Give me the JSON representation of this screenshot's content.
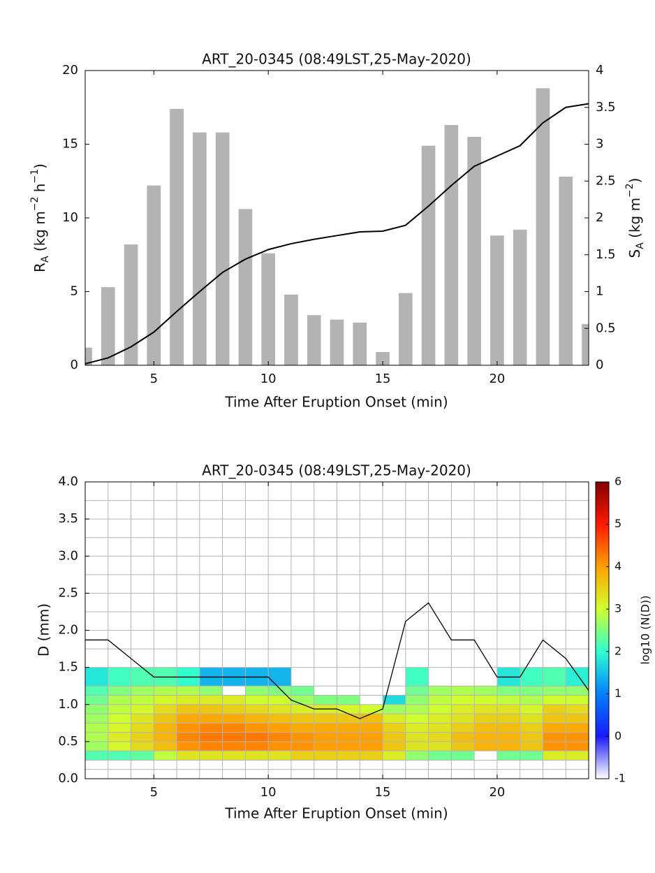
{
  "chart_data": [
    {
      "type": "bar",
      "title": "ART_20-0345 (08:49LST,25-May-2020)",
      "xlabel": "Time After Eruption Onset (min)",
      "ylabel": [
        "R",
        "A",
        " (kg m",
        "−2",
        " h",
        "−1",
        ")"
      ],
      "y2label": [
        "S",
        "A",
        " (kg m",
        "−2",
        ")"
      ],
      "x": [
        2,
        3,
        4,
        5,
        6,
        7,
        8,
        9,
        10,
        11,
        12,
        13,
        14,
        15,
        16,
        17,
        18,
        19,
        20,
        21,
        22,
        23,
        24
      ],
      "xlim": [
        2,
        24
      ],
      "xticks": [
        5,
        10,
        15,
        20
      ],
      "ylim": [
        0,
        20
      ],
      "yticks": [
        0,
        5,
        10,
        15,
        20
      ],
      "y2lim": [
        0,
        4
      ],
      "y2ticks": [
        0,
        0.5,
        1,
        1.5,
        2,
        2.5,
        3,
        3.5,
        4
      ],
      "series": [
        {
          "type": "bar",
          "color": "#b3b3b3",
          "values": [
            1.2,
            5.3,
            8.2,
            12.2,
            17.4,
            15.8,
            15.8,
            10.6,
            7.6,
            4.8,
            3.4,
            3.1,
            2.9,
            0.9,
            4.9,
            14.9,
            16.3,
            15.5,
            8.8,
            9.2,
            18.8,
            12.8,
            2.8
          ]
        },
        {
          "type": "line",
          "color": "#000000",
          "axis": "y2",
          "values": [
            0.02,
            0.1,
            0.25,
            0.45,
            0.73,
            1.0,
            1.26,
            1.44,
            1.57,
            1.65,
            1.71,
            1.76,
            1.81,
            1.82,
            1.9,
            2.16,
            2.44,
            2.7,
            2.84,
            2.98,
            3.29,
            3.5,
            3.55
          ]
        }
      ]
    },
    {
      "type": "heatmap",
      "title": "ART_20-0345 (08:49LST,25-May-2020)",
      "xlabel": "Time After Eruption Onset (min)",
      "ylabel": "D (mm)",
      "colorbar_label": "log10 (N(D))",
      "xlim": [
        2,
        24
      ],
      "xticks": [
        5,
        10,
        15,
        20
      ],
      "ylim": [
        0,
        4
      ],
      "yticks": [
        {
          "value": 0,
          "label": "0.0"
        },
        0.5,
        {
          "value": 1,
          "label": "1.0"
        },
        1.5,
        {
          "value": 2,
          "label": "2.0"
        },
        2.5,
        {
          "value": 3,
          "label": "3.0"
        },
        3.5,
        {
          "value": 4,
          "label": "4.0"
        }
      ],
      "clim": [
        -1,
        6
      ],
      "cticks": [
        -1,
        0,
        1,
        2,
        3,
        4,
        5,
        6
      ],
      "colormap": [
        "#ffffff",
        "#1a1aff",
        "#0080ff",
        "#30ffd0",
        "#d0ff30",
        "#ffa000",
        "#ff1a00",
        "#800000"
      ],
      "grid": true,
      "x_edges": [
        2,
        3,
        4,
        5,
        6,
        7,
        8,
        9,
        10,
        11,
        12,
        13,
        14,
        15,
        16,
        17,
        18,
        19,
        20,
        21,
        22,
        23,
        24
      ],
      "y_edges": [
        0,
        0.125,
        0.25,
        0.375,
        0.5,
        0.625,
        0.75,
        0.875,
        1.0,
        1.125,
        1.25,
        1.5,
        1.75,
        2.0,
        2.25,
        2.5,
        2.75,
        3.0,
        3.25,
        3.5,
        3.75,
        4.0
      ],
      "z": [
        [
          null,
          null,
          null,
          null,
          null,
          null,
          null,
          null,
          null,
          null,
          null,
          null,
          null,
          null,
          null,
          null,
          null,
          null,
          null,
          null,
          null,
          null
        ],
        [
          null,
          null,
          null,
          null,
          null,
          null,
          null,
          null,
          null,
          null,
          null,
          null,
          null,
          null,
          null,
          null,
          null,
          null,
          null,
          null,
          null,
          null
        ],
        [
          2.2,
          2.2,
          2.3,
          2.9,
          3.3,
          3.3,
          3.3,
          3.3,
          3.3,
          3.5,
          3.5,
          3.5,
          3.5,
          3.2,
          2.6,
          2.4,
          2.4,
          null,
          2.4,
          2.4,
          3.2,
          3.2
        ],
        [
          2.7,
          3.1,
          3.4,
          3.7,
          4.1,
          4.2,
          4.2,
          4.2,
          4.1,
          4.1,
          4.0,
          4.0,
          4.0,
          3.6,
          3.3,
          3.3,
          3.6,
          3.8,
          3.8,
          3.6,
          4.1,
          4.1
        ],
        [
          2.8,
          3.2,
          3.5,
          3.8,
          4.2,
          4.3,
          4.3,
          4.3,
          4.2,
          4.1,
          4.0,
          4.0,
          4.0,
          3.6,
          3.3,
          3.4,
          3.7,
          3.8,
          3.8,
          3.6,
          4.1,
          4.1
        ],
        [
          2.8,
          3.1,
          3.4,
          3.8,
          4.1,
          4.2,
          4.2,
          4.1,
          4.0,
          3.9,
          3.9,
          3.9,
          3.9,
          3.5,
          3.2,
          3.3,
          3.5,
          3.7,
          3.7,
          3.5,
          3.9,
          3.9
        ],
        [
          2.7,
          3.0,
          3.3,
          3.6,
          3.9,
          3.9,
          3.9,
          3.8,
          3.7,
          3.6,
          3.6,
          3.6,
          3.7,
          3.2,
          3.0,
          3.2,
          3.3,
          3.5,
          3.5,
          3.3,
          3.6,
          3.6
        ],
        [
          2.6,
          2.9,
          3.1,
          3.4,
          3.6,
          3.6,
          3.5,
          3.4,
          3.3,
          3.2,
          3.2,
          3.1,
          3.0,
          2.7,
          2.8,
          3.0,
          3.2,
          3.3,
          3.3,
          3.1,
          3.5,
          3.4
        ],
        [
          2.4,
          2.8,
          2.9,
          3.1,
          3.2,
          3.2,
          3.2,
          3.0,
          3.0,
          2.7,
          2.5,
          2.5,
          null,
          1.7,
          2.6,
          2.9,
          3.0,
          3.0,
          2.9,
          2.8,
          3.0,
          3.0
        ],
        [
          2.2,
          2.5,
          2.7,
          2.8,
          2.8,
          2.6,
          null,
          2.6,
          2.5,
          2.4,
          null,
          null,
          null,
          null,
          2.4,
          2.7,
          2.8,
          2.7,
          2.5,
          2.5,
          2.6,
          2.6
        ],
        [
          1.8,
          2.1,
          2.2,
          2.2,
          2.0,
          1.4,
          1.4,
          1.4,
          1.4,
          null,
          null,
          null,
          null,
          null,
          2.1,
          null,
          null,
          null,
          1.8,
          2.1,
          2.2,
          1.9
        ],
        [
          null,
          null,
          null,
          null,
          null,
          null,
          null,
          null,
          null,
          null,
          null,
          null,
          null,
          null,
          null,
          null,
          null,
          null,
          null,
          null,
          null,
          null
        ],
        [
          null,
          null,
          null,
          null,
          null,
          null,
          null,
          null,
          null,
          null,
          null,
          null,
          null,
          null,
          null,
          null,
          null,
          null,
          null,
          null,
          null,
          null
        ],
        [
          null,
          null,
          null,
          null,
          null,
          null,
          null,
          null,
          null,
          null,
          null,
          null,
          null,
          null,
          null,
          null,
          null,
          null,
          null,
          null,
          null,
          null
        ],
        [
          null,
          null,
          null,
          null,
          null,
          null,
          null,
          null,
          null,
          null,
          null,
          null,
          null,
          null,
          null,
          null,
          null,
          null,
          null,
          null,
          null,
          null
        ],
        [
          null,
          null,
          null,
          null,
          null,
          null,
          null,
          null,
          null,
          null,
          null,
          null,
          null,
          null,
          null,
          null,
          null,
          null,
          null,
          null,
          null,
          null
        ],
        [
          null,
          null,
          null,
          null,
          null,
          null,
          null,
          null,
          null,
          null,
          null,
          null,
          null,
          null,
          null,
          null,
          null,
          null,
          null,
          null,
          null,
          null
        ],
        [
          null,
          null,
          null,
          null,
          null,
          null,
          null,
          null,
          null,
          null,
          null,
          null,
          null,
          null,
          null,
          null,
          null,
          null,
          null,
          null,
          null,
          null
        ],
        [
          null,
          null,
          null,
          null,
          null,
          null,
          null,
          null,
          null,
          null,
          null,
          null,
          null,
          null,
          null,
          null,
          null,
          null,
          null,
          null,
          null,
          null
        ],
        [
          null,
          null,
          null,
          null,
          null,
          null,
          null,
          null,
          null,
          null,
          null,
          null,
          null,
          null,
          null,
          null,
          null,
          null,
          null,
          null,
          null,
          null
        ],
        [
          null,
          null,
          null,
          null,
          null,
          null,
          null,
          null,
          null,
          null,
          null,
          null,
          null,
          null,
          null,
          null,
          null,
          null,
          null,
          null,
          null,
          null
        ]
      ],
      "line": {
        "color": "#000000",
        "x": [
          2,
          3,
          4,
          5,
          6,
          7,
          8,
          9,
          10,
          11,
          12,
          13,
          14,
          15,
          16,
          17,
          18,
          19,
          20,
          21,
          22,
          23,
          24
        ],
        "values": [
          1.87,
          1.87,
          1.62,
          1.37,
          1.37,
          1.37,
          1.37,
          1.37,
          1.37,
          1.06,
          0.94,
          0.94,
          0.81,
          0.94,
          2.12,
          2.37,
          1.87,
          1.87,
          1.37,
          1.37,
          1.87,
          1.62,
          1.19
        ]
      }
    }
  ]
}
